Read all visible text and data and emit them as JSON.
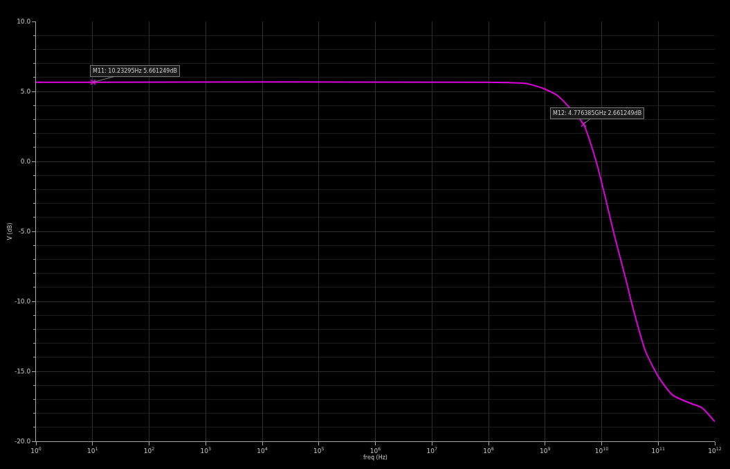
{
  "chart_data": {
    "type": "line",
    "xlabel": "freq (Hz)",
    "ylabel": "V (dB)",
    "log": "x",
    "grid": true,
    "marker": "none",
    "line_style": "solid",
    "x": [
      1,
      10.23,
      100000000.0,
      450000000.0,
      550000000.0,
      950000000.0,
      1660000000.0,
      2500000000.0,
      4780000000.0,
      8000000000.0,
      11500000000.0,
      16600000000.0,
      26300000000.0,
      37000000000.0,
      60000000000.0,
      105000000000.0,
      180000000000.0,
      380000000000.0,
      590000000000.0,
      1000000000000.0
    ],
    "series": [
      {
        "color": "#e000e0",
        "values": [
          5.66,
          5.66,
          5.66,
          5.58,
          5.5,
          5.2,
          4.7,
          4.0,
          2.66,
          0,
          -2.5,
          -5.2,
          -8.3,
          -10.7,
          -13.6,
          -15.5,
          -16.7,
          -17.3,
          -17.6,
          -18.6
        ]
      }
    ],
    "xlim": [
      1,
      1000000000000.0
    ],
    "xticks": [
      {
        "value": 1,
        "label": "10$^{0}$"
      },
      {
        "value": 10,
        "label": "10$^{1}$"
      },
      {
        "value": 100,
        "label": "10$^{2}$"
      },
      {
        "value": 1000,
        "label": "10$^{3}$"
      },
      {
        "value": 10000.0,
        "label": "10$^{4}$"
      },
      {
        "value": 100000.0,
        "label": "10$^{5}$"
      },
      {
        "value": 1000000.0,
        "label": "10$^{6}$"
      },
      {
        "value": 10000000.0,
        "label": "10$^{7}$"
      },
      {
        "value": 100000000.0,
        "label": "10$^{8}$"
      },
      {
        "value": 1000000000.0,
        "label": "10$^{9}$"
      },
      {
        "value": 10000000000.0,
        "label": "10$^{10}$"
      },
      {
        "value": 100000000000.0,
        "label": "10$^{11}$"
      },
      {
        "value": 1000000000000.0,
        "label": "10$^{12}$"
      }
    ],
    "ylim": [
      -20,
      10
    ],
    "yticks": [
      {
        "value": -20,
        "label": "-20.0"
      },
      {
        "value": -15,
        "label": "-15.0"
      },
      {
        "value": -10,
        "label": "-10.0"
      },
      {
        "value": -5,
        "label": "-5.0"
      },
      {
        "value": 0,
        "label": "0.0"
      },
      {
        "value": 5,
        "label": "5.0"
      },
      {
        "value": 10,
        "label": "10.0"
      }
    ],
    "annotations": [
      {
        "text": "M11: 10.23295Hz 5.661249dB",
        "x": 10.23295,
        "y": 5.661249
      },
      {
        "text": "M12: 4.776385GHz 2.661249dB",
        "x": 4776385000.0,
        "y": 2.661249
      }
    ]
  }
}
